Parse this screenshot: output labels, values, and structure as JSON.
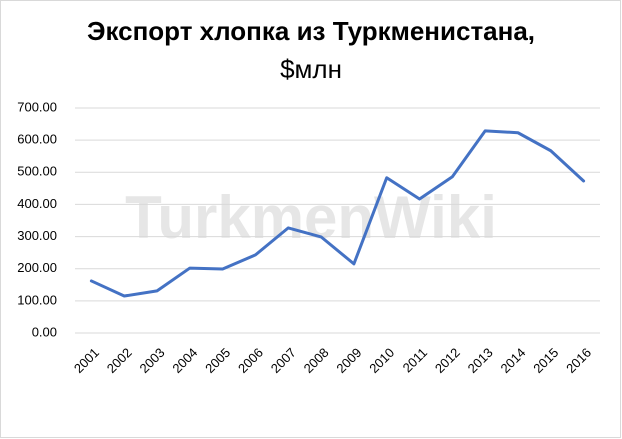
{
  "chart_data": {
    "type": "line",
    "title": "Экспорт хлопка из Туркменистана,",
    "subtitle": "$млн",
    "watermark": "TurkmenWiki",
    "categories": [
      "2001",
      "2002",
      "2003",
      "2004",
      "2005",
      "2006",
      "2007",
      "2008",
      "2009",
      "2010",
      "2011",
      "2012",
      "2013",
      "2014",
      "2015",
      "2016"
    ],
    "values": [
      162,
      115,
      131,
      202,
      199,
      243,
      327,
      299,
      215,
      483,
      417,
      486,
      629,
      623,
      567,
      473
    ],
    "color": "#4472c4",
    "ylim": [
      0,
      700
    ],
    "yticks": [
      {
        "value": 0,
        "label": "0.00"
      },
      {
        "value": 100,
        "label": "100.00"
      },
      {
        "value": 200,
        "label": "200.00"
      },
      {
        "value": 300,
        "label": "300.00"
      },
      {
        "value": 400,
        "label": "400.00"
      },
      {
        "value": 500,
        "label": "500.00"
      },
      {
        "value": 600,
        "label": "600.00"
      },
      {
        "value": 700,
        "label": "700.00"
      }
    ],
    "grid": true
  }
}
